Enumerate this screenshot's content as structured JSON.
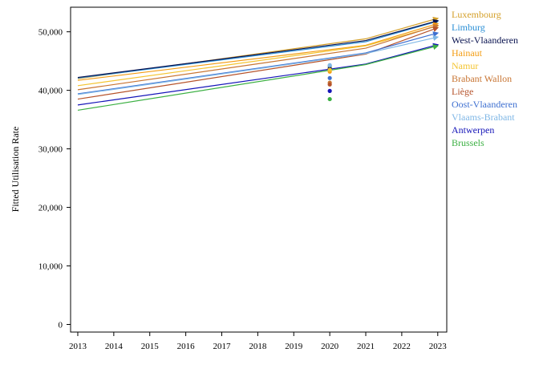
{
  "chart_data": {
    "type": "line",
    "title": "",
    "xlabel": "",
    "ylabel": "Fitted Utilisation Rate",
    "x_ticks": [
      2013,
      2014,
      2015,
      2016,
      2017,
      2018,
      2019,
      2020,
      2021,
      2022,
      2023
    ],
    "y_ticks": [
      0,
      10000,
      20000,
      30000,
      40000,
      50000
    ],
    "y_tick_labels": [
      "0",
      "10,000",
      "20,000",
      "30,000",
      "40,000",
      "50,000"
    ],
    "xlim": [
      2012.8,
      2023.25
    ],
    "ylim": [
      -1300,
      54200
    ],
    "grid": false,
    "legend_position": "right",
    "x": [
      2013,
      2021,
      2023
    ],
    "series": [
      {
        "name": "Luxembourg",
        "color": "#d4a02a",
        "values": [
          42000,
          48800,
          52300
        ],
        "marker_2020": 43900
      },
      {
        "name": "Limburg",
        "color": "#2b8fd6",
        "values": [
          42100,
          48300,
          51800
        ],
        "marker_2020": 44200
      },
      {
        "name": "West-Vlaanderen",
        "color": "#08124f",
        "values": [
          42200,
          48500,
          51900
        ],
        "marker_2020": 43700
      },
      {
        "name": "Hainaut",
        "color": "#f39c12",
        "values": [
          41700,
          47700,
          51400
        ],
        "marker_2020": 43200
      },
      {
        "name": "Namur",
        "color": "#f4c430",
        "values": [
          40800,
          47600,
          51000
        ],
        "marker_2020": 43500
      },
      {
        "name": "Brabant Wallon",
        "color": "#c87533",
        "values": [
          40100,
          47200,
          51100
        ],
        "marker_2020": 41300
      },
      {
        "name": "Liège",
        "color": "#b5522a",
        "values": [
          38500,
          46200,
          50700
        ],
        "marker_2020": 41000
      },
      {
        "name": "Oost-Vlaanderen",
        "color": "#3d6fd0",
        "values": [
          39400,
          46400,
          49800
        ],
        "marker_2020": 42100
      },
      {
        "name": "Vlaams-Brabant",
        "color": "#7fb7e6",
        "values": [
          39300,
          46300,
          49100
        ],
        "marker_2020": 44300
      },
      {
        "name": "Antwerpen",
        "color": "#1414b8",
        "values": [
          37500,
          44500,
          47800
        ],
        "marker_2020": 39900
      },
      {
        "name": "Brussels",
        "color": "#3cb043",
        "values": [
          36600,
          44400,
          47600
        ],
        "marker_2020": 38500
      }
    ]
  }
}
